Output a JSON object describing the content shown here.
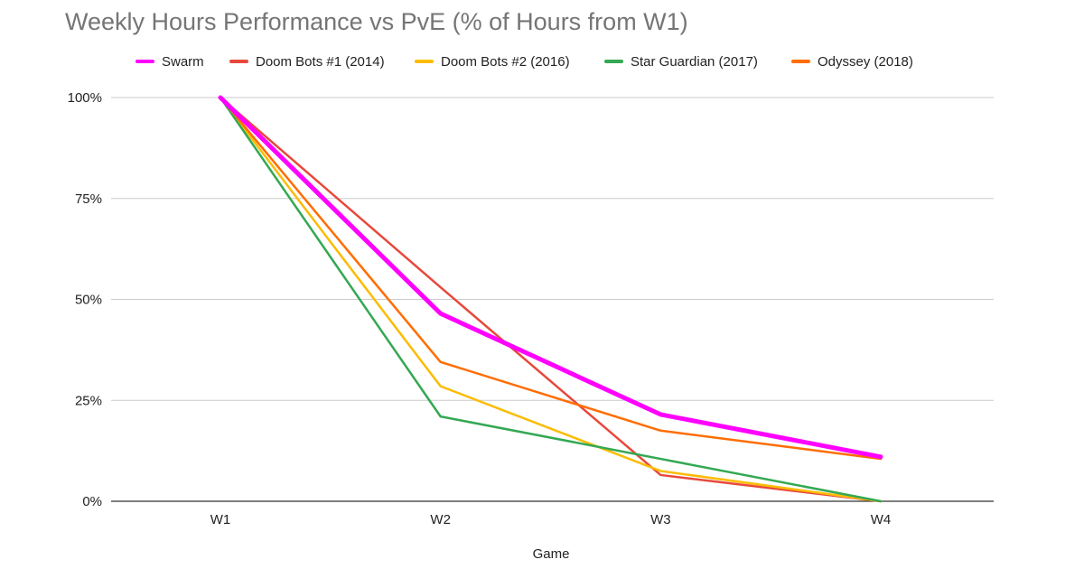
{
  "chart_data": {
    "type": "line",
    "title": "Weekly Hours Performance vs PvE (% of Hours from W1)",
    "xlabel": "Game",
    "ylabel": "",
    "categories": [
      "W1",
      "W2",
      "W3",
      "W4"
    ],
    "ylim": [
      0,
      100
    ],
    "yticks": [
      "0%",
      "25%",
      "50%",
      "75%",
      "100%"
    ],
    "ytick_values": [
      0,
      25,
      50,
      75,
      100
    ],
    "grid": true,
    "legend_position": "top",
    "series": [
      {
        "name": "Swarm",
        "color": "#ff00ff",
        "values": [
          100,
          46.5,
          21.5,
          11
        ]
      },
      {
        "name": "Doom Bots #1 (2014)",
        "color": "#e8483b",
        "values": [
          100,
          53,
          6.5,
          0
        ]
      },
      {
        "name": "Doom Bots #2 (2016)",
        "color": "#fbbc04",
        "values": [
          100,
          28.5,
          7.5,
          0
        ]
      },
      {
        "name": "Star Guardian (2017)",
        "color": "#34a853",
        "values": [
          100,
          21,
          10.5,
          0
        ]
      },
      {
        "name": "Odyssey (2018)",
        "color": "#ff6d01",
        "values": [
          100,
          34.5,
          17.5,
          10.5
        ]
      }
    ]
  }
}
